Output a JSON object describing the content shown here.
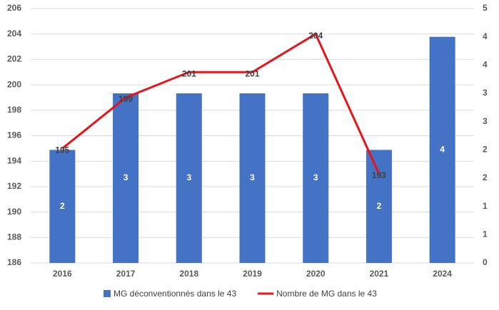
{
  "chart_data": {
    "type": "bar_line",
    "categories": [
      "2016",
      "2017",
      "2018",
      "2019",
      "2020",
      "2021",
      "2024"
    ],
    "series": [
      {
        "name": "MG déconventionnés dans le 43",
        "color": "#4472c4",
        "type": "bar",
        "axis": "y2",
        "values": [
          2,
          3,
          3,
          3,
          3,
          2,
          4
        ]
      },
      {
        "name": "Nombre de MG dans le 43",
        "color": "#e8141b",
        "type": "line",
        "axis": "y",
        "values": [
          195,
          199,
          201,
          201,
          204,
          193,
          null
        ]
      }
    ],
    "ylim": [
      186,
      206
    ],
    "yticks": [
      186,
      188,
      190,
      192,
      194,
      196,
      198,
      200,
      202,
      204,
      206
    ],
    "y2lim": [
      0,
      4.5
    ],
    "y2ticks": [
      0,
      {
        "value": 0.5,
        "label": "1"
      },
      1,
      {
        "value": 1.5,
        "label": "2"
      },
      2,
      {
        "value": 2.5,
        "label": "3"
      },
      3,
      {
        "value": 3.5,
        "label": "4"
      },
      4,
      {
        "value": 4.5,
        "label": "5"
      }
    ],
    "grid": true,
    "legend": "bottom"
  }
}
